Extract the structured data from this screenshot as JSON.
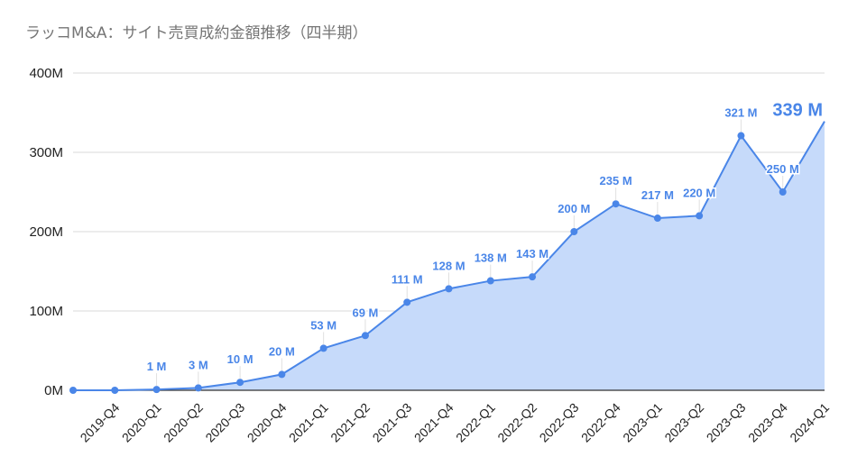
{
  "title": "ラッコM&A：サイト売買成約金額推移（四半期）",
  "colors": {
    "line": "#4a86e8",
    "fill": "#c6dafa",
    "grid": "#d9d9d9",
    "axis": "#333333"
  },
  "chart_data": {
    "type": "area",
    "title": "ラッコM&A：サイト売買成約金額推移（四半期）",
    "xlabel": "",
    "ylabel": "",
    "ylim": [
      0,
      400
    ],
    "grid": true,
    "legend": "none",
    "y_ticks": [
      "0M",
      "100M",
      "200M",
      "300M",
      "400M"
    ],
    "categories": [
      "",
      "2019-Q4",
      "2020-Q1",
      "2020-Q2",
      "2020-Q3",
      "2020-Q4",
      "2021-Q1",
      "2021-Q2",
      "2021-Q3",
      "2021-Q4",
      "2022-Q1",
      "2022-Q2",
      "2022-Q3",
      "2022-Q4",
      "2023-Q1",
      "2023-Q2",
      "2023-Q3",
      "2023-Q4",
      "2024-Q1"
    ],
    "values": [
      0,
      0,
      1,
      3,
      10,
      20,
      53,
      69,
      111,
      128,
      138,
      143,
      200,
      235,
      217,
      220,
      321,
      250,
      339
    ],
    "data_labels": [
      "",
      "",
      "1 M",
      "3 M",
      "10 M",
      "20 M",
      "53 M",
      "69 M",
      "111 M",
      "128 M",
      "138 M",
      "143 M",
      "200 M",
      "235 M",
      "217 M",
      "220 M",
      "321 M",
      "250 M",
      "339 M"
    ],
    "unit": "M (million yen)"
  }
}
